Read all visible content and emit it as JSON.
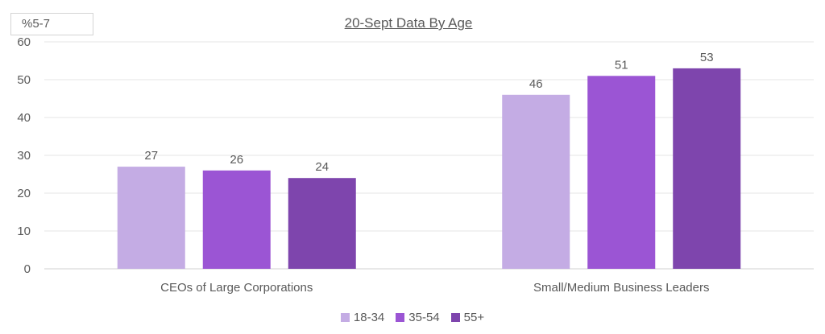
{
  "badge": "%5-7",
  "chart_data": {
    "type": "bar",
    "title": "20-Sept Data By Age",
    "categories": [
      "CEOs of Large Corporations",
      "Small/Medium Business Leaders"
    ],
    "series": [
      {
        "name": "18-34",
        "values": [
          27,
          46
        ],
        "color": "#c4ace4"
      },
      {
        "name": "35-54",
        "values": [
          26,
          51
        ],
        "color": "#9b55d4"
      },
      {
        "name": "55+",
        "values": [
          24,
          53
        ],
        "color": "#7e45ad"
      }
    ],
    "yticks": [
      0,
      10,
      20,
      30,
      40,
      50,
      60
    ],
    "ylim": [
      0,
      60
    ],
    "xlabel": "",
    "ylabel": "",
    "grid": true,
    "legend_position": "bottom",
    "data_labels": true
  }
}
